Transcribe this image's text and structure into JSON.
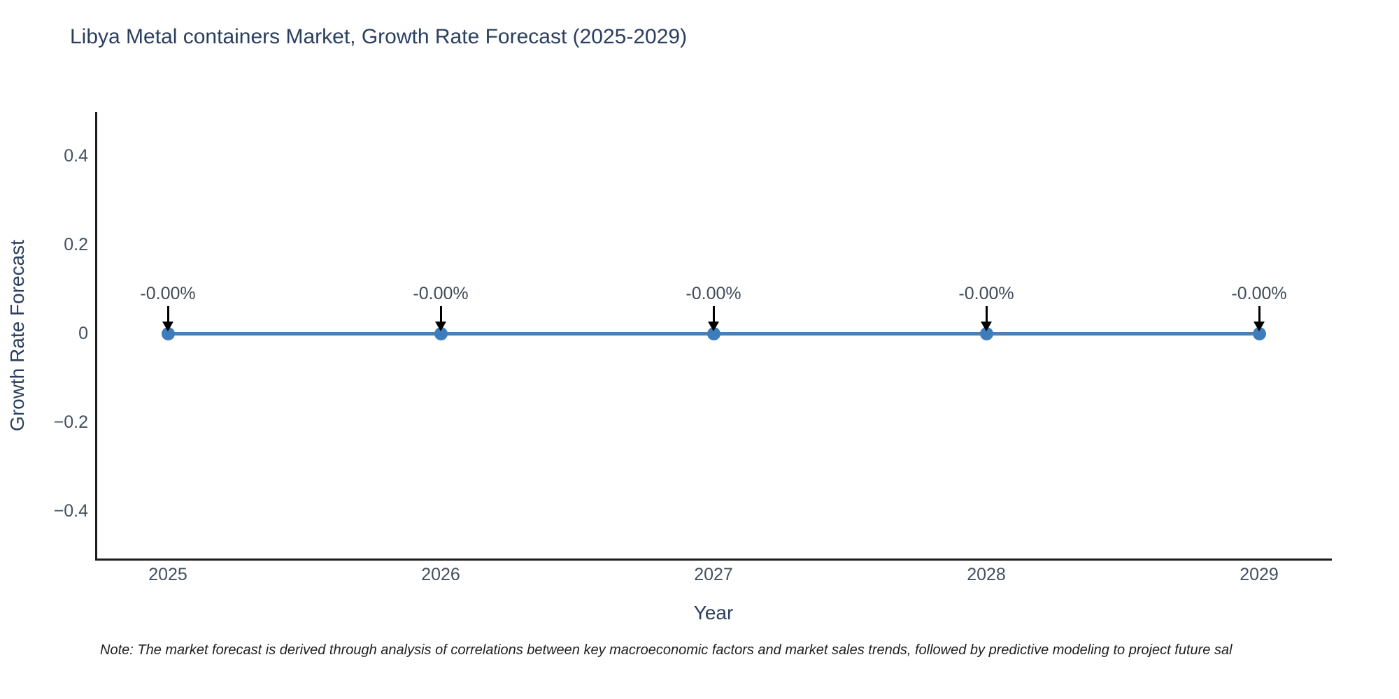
{
  "page": {
    "background": "#ffffff"
  },
  "chart": {
    "title": "Libya Metal containers Market, Growth Rate Forecast (2025-2029)",
    "x_axis_title": "Year",
    "y_axis_title": "Growth Rate Forecast",
    "note": "Note: The market forecast is derived through analysis of correlations between key macroeconomic factors and market sales trends, followed by predictive modeling to project future sal"
  },
  "chart_data": {
    "type": "line",
    "title": "Libya Metal containers Market, Growth Rate Forecast (2025-2029)",
    "xlabel": "Year",
    "ylabel": "Growth Rate Forecast",
    "x": [
      2025,
      2026,
      2027,
      2028,
      2029
    ],
    "series": [
      {
        "name": "Growth Rate Forecast",
        "values": [
          0,
          0,
          0,
          0,
          0
        ]
      }
    ],
    "point_labels": [
      "-0.00%",
      "-0.00%",
      "-0.00%",
      "-0.00%",
      "-0.00%"
    ],
    "annotation_arrow_direction": "down",
    "ylim": [
      -0.5,
      0.5
    ],
    "yticks": {
      "labels": [
        "0.4",
        "0.2",
        "0",
        "−0.2",
        "−0.4"
      ],
      "values": [
        0.4,
        0.2,
        0,
        -0.2,
        -0.4
      ]
    },
    "xticks": {
      "labels": [
        "2025",
        "2026",
        "2027",
        "2028",
        "2029"
      ],
      "values": [
        2025,
        2026,
        2027,
        2028,
        2029
      ]
    },
    "grid": false,
    "legend": false,
    "colors": {
      "line": "#4d80ad",
      "marker": "#3e7dbd",
      "axis": "#1c1c1c",
      "title_text": "#2a3f5f",
      "axis_title_text": "#2a3f5f",
      "tick_text": "#43505f",
      "annotation_text": "#404b5a",
      "arrow": "#000000",
      "note_text": "#1f1f1f"
    }
  }
}
